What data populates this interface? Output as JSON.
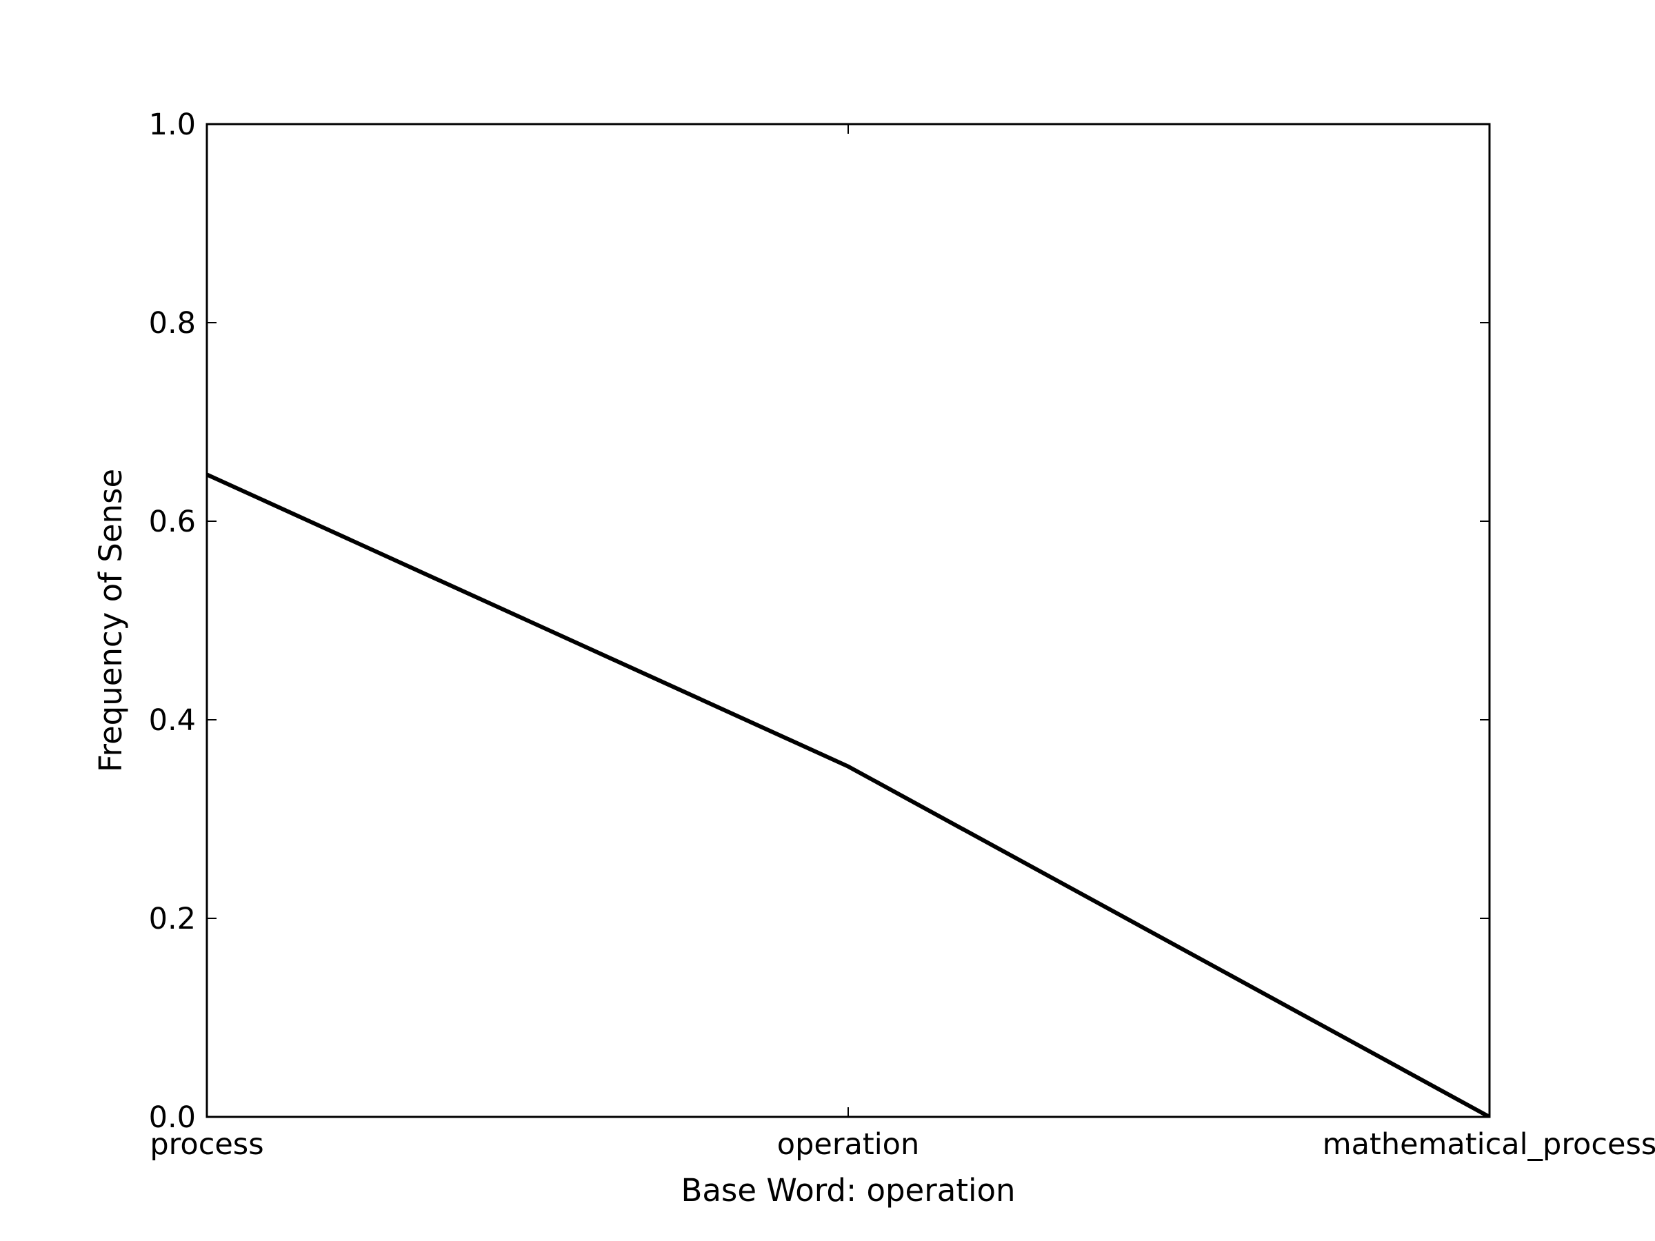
{
  "chart_data": {
    "type": "line",
    "title": "",
    "xlabel": "Base Word: operation",
    "ylabel": "Frequency of Sense",
    "categories": [
      "process",
      "operation",
      "mathematical_process"
    ],
    "series": [
      {
        "values": [
          0.647,
          0.353,
          0.0
        ],
        "color": "#000000"
      }
    ],
    "ylim": [
      0,
      1.0
    ],
    "yticks": [
      "0.0",
      "0.2",
      "0.4",
      "0.6",
      "0.8",
      "1.0"
    ],
    "grid": false,
    "legend": "none"
  }
}
